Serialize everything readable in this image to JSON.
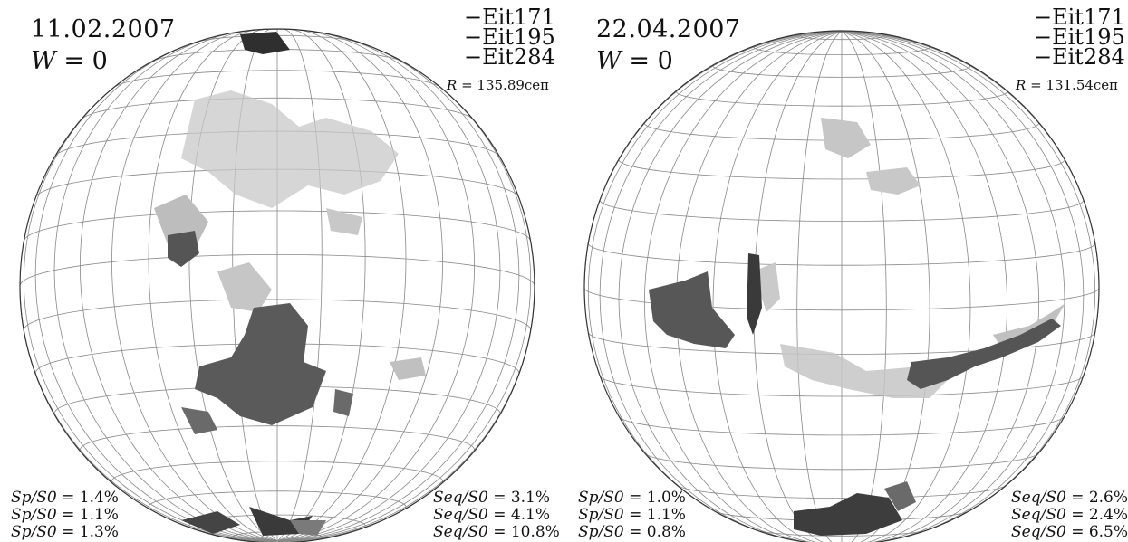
{
  "panels": [
    {
      "date": "11.02.2007",
      "w_label": "W",
      "w_value": "= 0",
      "legend": [
        "−Eit171",
        "−Eit195",
        "−Eit284"
      ],
      "radius_label": "R",
      "radius_value": "= 135.89сеп",
      "left_stats": [
        {
          "label": "Sp/S0",
          "value": "= 1.4%"
        },
        {
          "label": "Sp/S0",
          "value": "= 1.1%"
        },
        {
          "label": "Sp/S0",
          "value": "= 1.3%"
        }
      ],
      "right_stats": [
        {
          "label": "Seq/S0",
          "value": "= 3.1%"
        },
        {
          "label": "Seq/S0",
          "value": "= 4.1%"
        },
        {
          "label": "Seq/S0",
          "value": "= 10.8%"
        }
      ]
    },
    {
      "date": "22.04.2007",
      "w_label": "W",
      "w_value": "= 0",
      "legend": [
        "−Eit171",
        "−Eit195",
        "−Eit284"
      ],
      "radius_label": "R",
      "radius_value": "= 131.54сеп",
      "left_stats": [
        {
          "label": "Sp/S0",
          "value": "= 1.0%"
        },
        {
          "label": "Sp/S0",
          "value": "= 1.1%"
        },
        {
          "label": "Sp/S0",
          "value": "= 0.8%"
        }
      ],
      "right_stats": [
        {
          "label": "Seq/S0",
          "value": "= 2.6%"
        },
        {
          "label": "Seq/S0",
          "value": "= 2.4%"
        },
        {
          "label": "Seq/S0",
          "value": "= 6.5%"
        }
      ]
    }
  ],
  "colors": {
    "grid": "#888888",
    "outline": "#333333",
    "light_region": "#bdbdbd",
    "dark_region": "#555555",
    "darkest_region": "#2a2a2a"
  }
}
